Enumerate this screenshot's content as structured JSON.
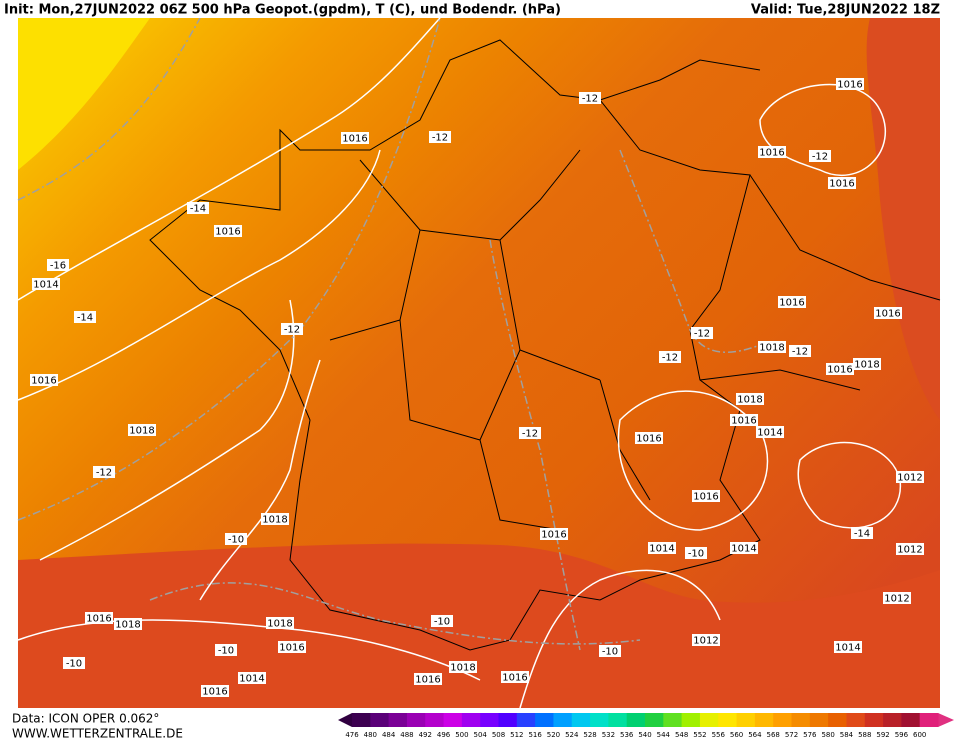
{
  "header": {
    "left": "Init: Mon,27JUN2022 06Z 500 hPa Geopot.(gpdm), T (C), und Bodendr. (hPa)",
    "right": "Valid: Tue,28JUN2022 18Z"
  },
  "footer": {
    "data": "Data: ICON OPER 0.062°",
    "site": "WWW.WETTERZENTRALE.DE"
  },
  "contour_labels": [
    "-12",
    "-12",
    "1016",
    "1016",
    "1016",
    "-12",
    "1016",
    "-14",
    "1016",
    "-16",
    "1014",
    "-14",
    "-12",
    "1016",
    "1016",
    "-12",
    "-12",
    "1018",
    "-12",
    "1016",
    "1018",
    "1016",
    "1018",
    "1016",
    "1014",
    "1018",
    "-12",
    "1016",
    "-12",
    "1012",
    "1016",
    "1018",
    "-10",
    "1016",
    "-14",
    "1014",
    "-10",
    "1014",
    "1012",
    "1012",
    "1016",
    "1018",
    "1018",
    "-10",
    "1016",
    "-10",
    "1012",
    "-10",
    "1014",
    "-10",
    "1018",
    "1016",
    "1014",
    "1016",
    "1016"
  ],
  "colorbar": [
    476,
    480,
    484,
    488,
    492,
    496,
    500,
    504,
    508,
    512,
    516,
    520,
    524,
    528,
    532,
    536,
    540,
    544,
    548,
    552,
    556,
    560,
    564,
    568,
    572,
    576,
    580,
    584,
    588,
    592,
    596,
    600
  ]
}
